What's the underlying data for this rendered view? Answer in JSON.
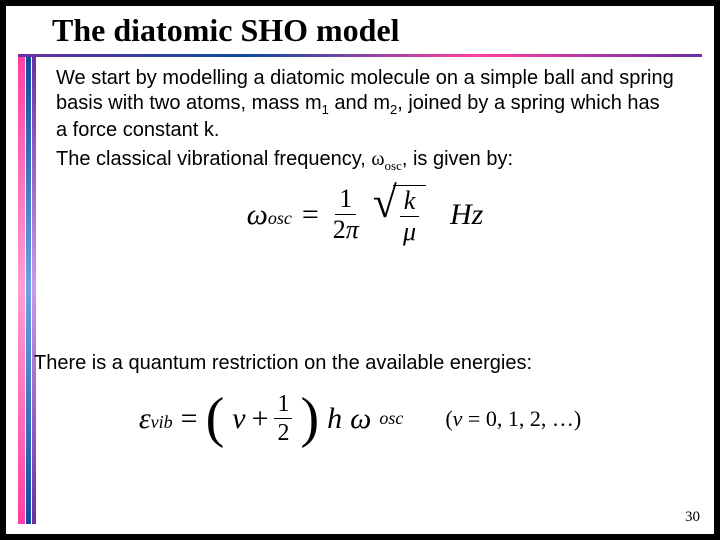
{
  "slide": {
    "title": "The diatomic SHO model",
    "page_number": "30",
    "border_colors": {
      "pink": "#ff3fa3",
      "blue": "#0a4aa0",
      "purple": "#6a2fa0"
    }
  },
  "body": {
    "para1a": "We start by modelling a diatomic molecule on a simple ball and spring basis with two atoms, mass m",
    "para1b": " and m",
    "para1c": ", joined by a spring which has a force constant k.",
    "sub1": "1",
    "sub2": "2",
    "para2a": "The classical vibrational frequency, ",
    "para2b": ", is given by:",
    "omega_osc": "ω",
    "osc_sub": "osc"
  },
  "eq1": {
    "lhs_sym": "ω",
    "lhs_sub": "osc",
    "equals": "=",
    "frac_num": "1",
    "frac_den_a": "2",
    "frac_den_b": "π",
    "rad_num": "k",
    "rad_den": "μ",
    "unit": "Hz"
  },
  "quantum_line": "There is a quantum restriction on the available energies:",
  "eq2": {
    "lhs_sym": "ε",
    "lhs_sub": "vib",
    "equals": "=",
    "v": "v",
    "plus": "+",
    "half_num": "1",
    "half_den": "2",
    "h": "h",
    "omega": "ω",
    "omega_sub": "osc",
    "side_open": "(",
    "side_v": "v",
    "side_rest": " = 0, 1, 2, …)",
    "side_close": ""
  }
}
